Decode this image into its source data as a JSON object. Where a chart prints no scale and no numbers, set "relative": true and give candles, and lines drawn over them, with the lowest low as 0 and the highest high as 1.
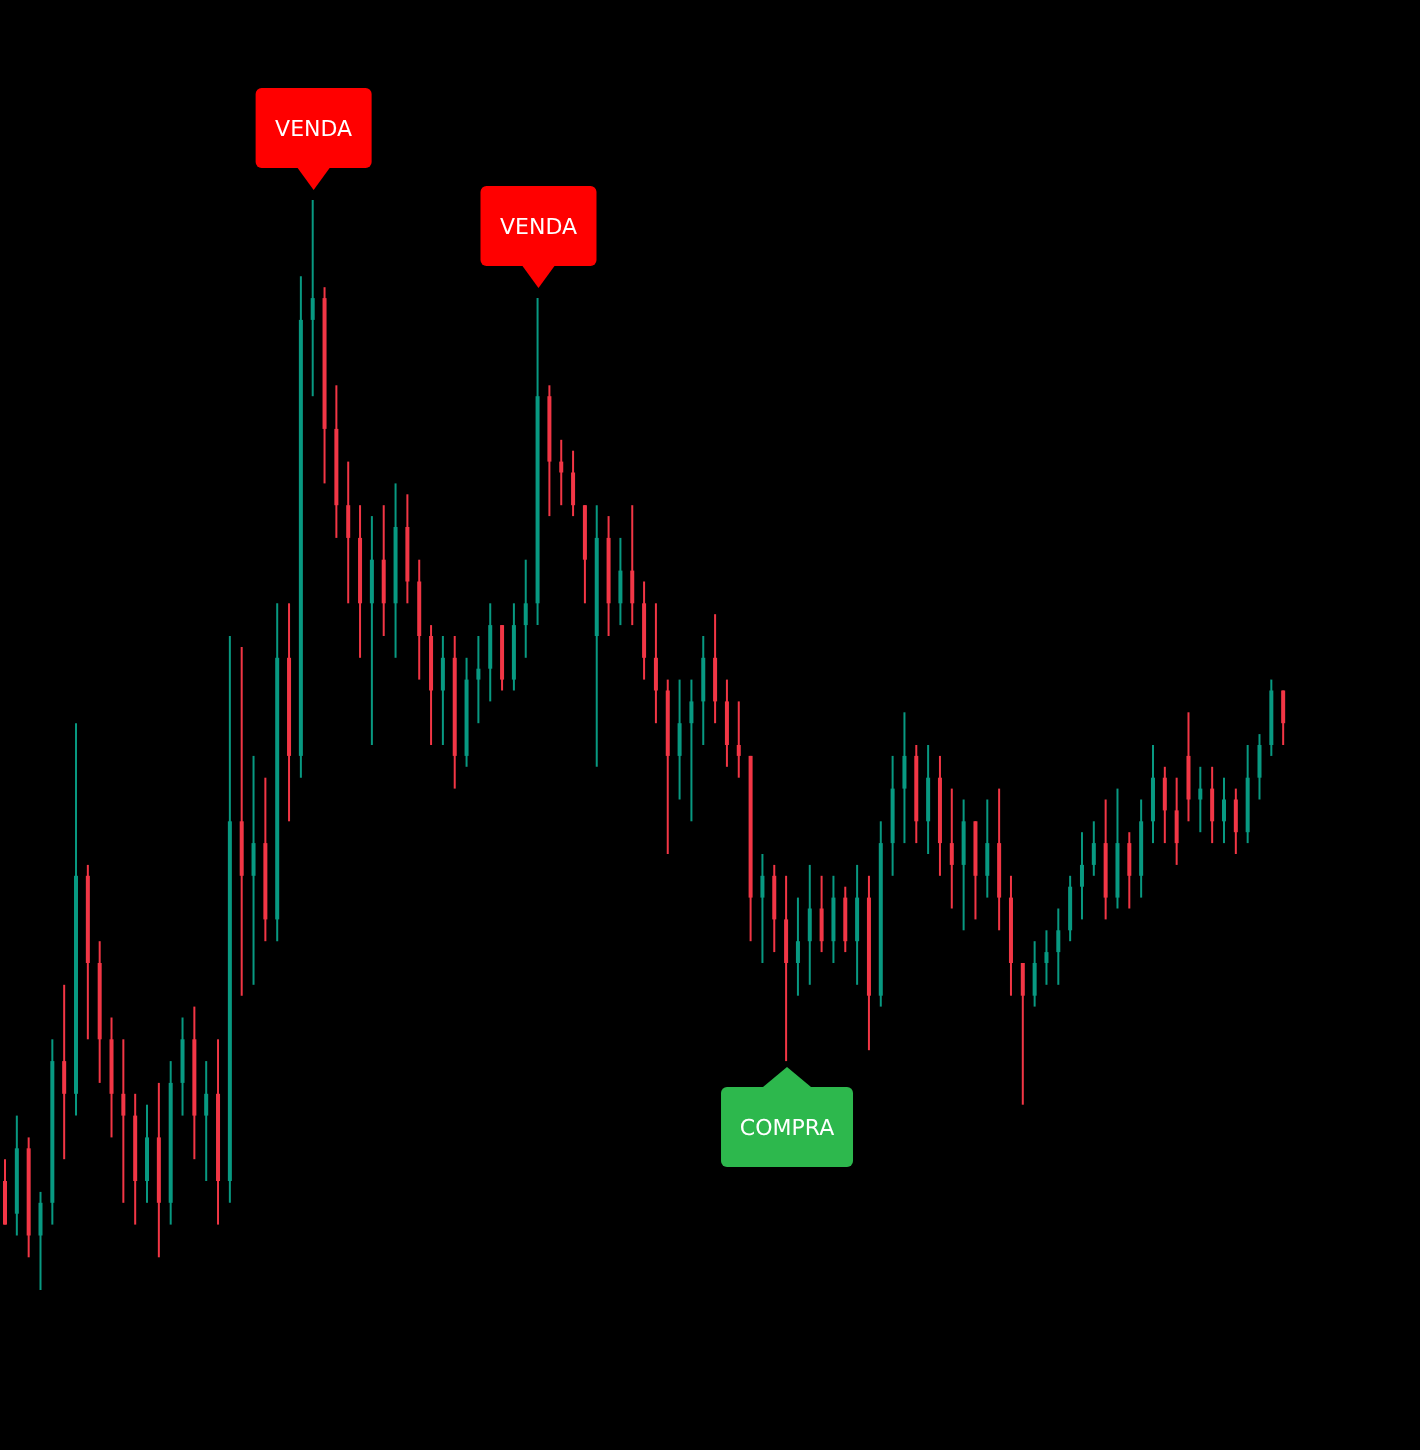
{
  "chart_data": {
    "type": "candlestick",
    "relative": true,
    "colors": [
      "#f23645",
      "#089981",
      "#f23645",
      "#089981",
      "#089981",
      "#f23645",
      "#089981",
      "#f23645",
      "#f23645",
      "#f23645",
      "#f23645",
      "#f23645",
      "#089981",
      "#f23645",
      "#089981",
      "#089981",
      "#f23645",
      "#089981",
      "#f23645",
      "#089981",
      "#f23645",
      "#089981",
      "#f23645",
      "#089981",
      "#f23645",
      "#089981",
      "#089981",
      "#f23645",
      "#f23645",
      "#f23645",
      "#f23645",
      "#089981",
      "#f23645",
      "#089981",
      "#f23645",
      "#f23645",
      "#f23645",
      "#089981",
      "#f23645",
      "#089981",
      "#089981",
      "#089981",
      "#f23645",
      "#089981",
      "#089981",
      "#089981",
      "#f23645",
      "#f23645",
      "#f23645",
      "#f23645",
      "#089981",
      "#f23645",
      "#089981",
      "#f23645",
      "#f23645",
      "#f23645",
      "#f23645",
      "#089981",
      "#089981",
      "#089981",
      "#f23645",
      "#f23645",
      "#f23645",
      "#f23645",
      "#089981",
      "#f23645",
      "#f23645",
      "#089981",
      "#089981",
      "#f23645",
      "#089981",
      "#f23645",
      "#089981",
      "#f23645",
      "#089981",
      "#089981",
      "#089981",
      "#f23645",
      "#089981",
      "#f23645",
      "#f23645",
      "#089981",
      "#f23645",
      "#089981",
      "#f23645",
      "#f23645",
      "#f23645",
      "#089981",
      "#089981",
      "#089981",
      "#089981",
      "#089981",
      "#089981",
      "#f23645",
      "#089981",
      "#f23645",
      "#089981",
      "#089981",
      "#f23645",
      "#f23645",
      "#f23645",
      "#089981",
      "#f23645",
      "#089981",
      "#f23645",
      "#089981",
      "#089981",
      "#089981",
      "#f23645"
    ],
    "categories": [
      null,
      null,
      null,
      null,
      null,
      null,
      null,
      null,
      null,
      null,
      null,
      null,
      null,
      null,
      null,
      null,
      null,
      null,
      null,
      null,
      null,
      null,
      null,
      null,
      null,
      null,
      null,
      null,
      null,
      null,
      null,
      null,
      null,
      null,
      null,
      null,
      null,
      null,
      null,
      null,
      null,
      null,
      null,
      null,
      null,
      null,
      null,
      null,
      null,
      null,
      null,
      null,
      null,
      null,
      null,
      null,
      null,
      null,
      null,
      null,
      null,
      null,
      null,
      null,
      null,
      null,
      null,
      null,
      null,
      null,
      null,
      null,
      null,
      null,
      null,
      null,
      null,
      null,
      null,
      null,
      null,
      null,
      null,
      null,
      null,
      null,
      null,
      null,
      null,
      null,
      null,
      null,
      null,
      null,
      null,
      null,
      null,
      null,
      null,
      null,
      null,
      null,
      null,
      null,
      null,
      null,
      null,
      null,
      null
    ],
    "ohlc": [
      [
        0.1,
        0.12,
        0.06,
        0.06
      ],
      [
        0.07,
        0.16,
        0.05,
        0.13
      ],
      [
        0.13,
        0.14,
        0.03,
        0.05
      ],
      [
        0.05,
        0.09,
        0,
        0.08
      ],
      [
        0.08,
        0.23,
        0.06,
        0.21
      ],
      [
        0.21,
        0.28,
        0.12,
        0.18
      ],
      [
        0.18,
        0.52,
        0.16,
        0.38
      ],
      [
        0.38,
        0.39,
        0.23,
        0.3
      ],
      [
        0.3,
        0.32,
        0.19,
        0.23
      ],
      [
        0.23,
        0.25,
        0.14,
        0.18
      ],
      [
        0.18,
        0.23,
        0.08,
        0.16
      ],
      [
        0.16,
        0.18,
        0.06,
        0.1
      ],
      [
        0.1,
        0.17,
        0.08,
        0.14
      ],
      [
        0.14,
        0.19,
        0.03,
        0.08
      ],
      [
        0.08,
        0.21,
        0.06,
        0.19
      ],
      [
        0.19,
        0.25,
        0.16,
        0.23
      ],
      [
        0.23,
        0.26,
        0.12,
        0.16
      ],
      [
        0.16,
        0.21,
        0.1,
        0.18
      ],
      [
        0.18,
        0.23,
        0.06,
        0.1
      ],
      [
        0.1,
        0.6,
        0.08,
        0.43
      ],
      [
        0.43,
        0.59,
        0.27,
        0.38
      ],
      [
        0.38,
        0.49,
        0.28,
        0.41
      ],
      [
        0.41,
        0.47,
        0.32,
        0.34
      ],
      [
        0.34,
        0.63,
        0.32,
        0.58
      ],
      [
        0.58,
        0.63,
        0.43,
        0.49
      ],
      [
        0.49,
        0.93,
        0.47,
        0.89
      ],
      [
        0.89,
        1,
        0.82,
        0.91
      ],
      [
        0.91,
        0.92,
        0.74,
        0.79
      ],
      [
        0.79,
        0.83,
        0.69,
        0.72
      ],
      [
        0.72,
        0.76,
        0.63,
        0.69
      ],
      [
        0.69,
        0.72,
        0.58,
        0.63
      ],
      [
        0.63,
        0.71,
        0.5,
        0.67
      ],
      [
        0.67,
        0.72,
        0.6,
        0.63
      ],
      [
        0.63,
        0.74,
        0.58,
        0.7
      ],
      [
        0.7,
        0.73,
        0.63,
        0.65
      ],
      [
        0.65,
        0.67,
        0.56,
        0.6
      ],
      [
        0.6,
        0.61,
        0.5,
        0.55
      ],
      [
        0.55,
        0.6,
        0.5,
        0.58
      ],
      [
        0.58,
        0.6,
        0.46,
        0.49
      ],
      [
        0.49,
        0.58,
        0.48,
        0.56
      ],
      [
        0.56,
        0.6,
        0.52,
        0.57
      ],
      [
        0.57,
        0.63,
        0.54,
        0.61
      ],
      [
        0.61,
        0.61,
        0.55,
        0.56
      ],
      [
        0.56,
        0.63,
        0.55,
        0.61
      ],
      [
        0.61,
        0.67,
        0.58,
        0.63
      ],
      [
        0.63,
        0.91,
        0.61,
        0.82
      ],
      [
        0.82,
        0.83,
        0.71,
        0.76
      ],
      [
        0.76,
        0.78,
        0.72,
        0.75
      ],
      [
        0.75,
        0.77,
        0.71,
        0.72
      ],
      [
        0.72,
        0.72,
        0.63,
        0.67
      ],
      [
        0.6,
        0.72,
        0.48,
        0.69
      ],
      [
        0.69,
        0.71,
        0.6,
        0.63
      ],
      [
        0.63,
        0.69,
        0.61,
        0.66
      ],
      [
        0.66,
        0.72,
        0.61,
        0.63
      ],
      [
        0.63,
        0.65,
        0.56,
        0.58
      ],
      [
        0.58,
        0.63,
        0.52,
        0.55
      ],
      [
        0.55,
        0.56,
        0.4,
        0.49
      ],
      [
        0.49,
        0.56,
        0.45,
        0.52
      ],
      [
        0.52,
        0.56,
        0.43,
        0.54
      ],
      [
        0.54,
        0.6,
        0.5,
        0.58
      ],
      [
        0.58,
        0.62,
        0.52,
        0.54
      ],
      [
        0.54,
        0.56,
        0.48,
        0.5
      ],
      [
        0.5,
        0.54,
        0.47,
        0.49
      ],
      [
        0.49,
        0.49,
        0.32,
        0.36
      ],
      [
        0.36,
        0.4,
        0.3,
        0.38
      ],
      [
        0.38,
        0.39,
        0.31,
        0.34
      ],
      [
        0.34,
        0.38,
        0.21,
        0.3
      ],
      [
        0.3,
        0.36,
        0.27,
        0.32
      ],
      [
        0.32,
        0.39,
        0.28,
        0.35
      ],
      [
        0.35,
        0.38,
        0.31,
        0.32
      ],
      [
        0.32,
        0.38,
        0.3,
        0.36
      ],
      [
        0.36,
        0.37,
        0.31,
        0.32
      ],
      [
        0.32,
        0.39,
        0.28,
        0.36
      ],
      [
        0.36,
        0.38,
        0.22,
        0.27
      ],
      [
        0.27,
        0.43,
        0.26,
        0.41
      ],
      [
        0.41,
        0.49,
        0.38,
        0.46
      ],
      [
        0.46,
        0.53,
        0.41,
        0.49
      ],
      [
        0.49,
        0.5,
        0.41,
        0.43
      ],
      [
        0.43,
        0.5,
        0.4,
        0.47
      ],
      [
        0.47,
        0.49,
        0.38,
        0.41
      ],
      [
        0.41,
        0.46,
        0.35,
        0.39
      ],
      [
        0.39,
        0.45,
        0.33,
        0.43
      ],
      [
        0.43,
        0.43,
        0.34,
        0.38
      ],
      [
        0.38,
        0.45,
        0.36,
        0.41
      ],
      [
        0.41,
        0.46,
        0.33,
        0.36
      ],
      [
        0.36,
        0.38,
        0.27,
        0.3
      ],
      [
        0.3,
        0.3,
        0.17,
        0.27
      ],
      [
        0.27,
        0.32,
        0.26,
        0.3
      ],
      [
        0.3,
        0.33,
        0.28,
        0.31
      ],
      [
        0.31,
        0.35,
        0.28,
        0.33
      ],
      [
        0.33,
        0.38,
        0.32,
        0.37
      ],
      [
        0.37,
        0.42,
        0.34,
        0.39
      ],
      [
        0.39,
        0.43,
        0.38,
        0.41
      ],
      [
        0.41,
        0.45,
        0.34,
        0.36
      ],
      [
        0.36,
        0.46,
        0.35,
        0.41
      ],
      [
        0.41,
        0.42,
        0.35,
        0.38
      ],
      [
        0.38,
        0.45,
        0.36,
        0.43
      ],
      [
        0.43,
        0.5,
        0.41,
        0.47
      ],
      [
        0.47,
        0.48,
        0.41,
        0.44
      ],
      [
        0.44,
        0.47,
        0.39,
        0.41
      ],
      [
        0.49,
        0.53,
        0.43,
        0.45
      ],
      [
        0.45,
        0.48,
        0.42,
        0.46
      ],
      [
        0.46,
        0.48,
        0.41,
        0.43
      ],
      [
        0.43,
        0.47,
        0.41,
        0.45
      ],
      [
        0.45,
        0.46,
        0.4,
        0.42
      ],
      [
        0.42,
        0.5,
        0.41,
        0.47
      ],
      [
        0.47,
        0.51,
        0.45,
        0.5
      ],
      [
        0.5,
        0.56,
        0.49,
        0.55
      ],
      [
        0.55,
        0.55,
        0.5,
        0.52
      ]
    ],
    "annotations": [
      {
        "text": "VENDA",
        "y": 1
      },
      {
        "text": "VENDA",
        "y": 0.91
      },
      {
        "text": "COMPRA",
        "y": 0.21
      }
    ]
  }
}
